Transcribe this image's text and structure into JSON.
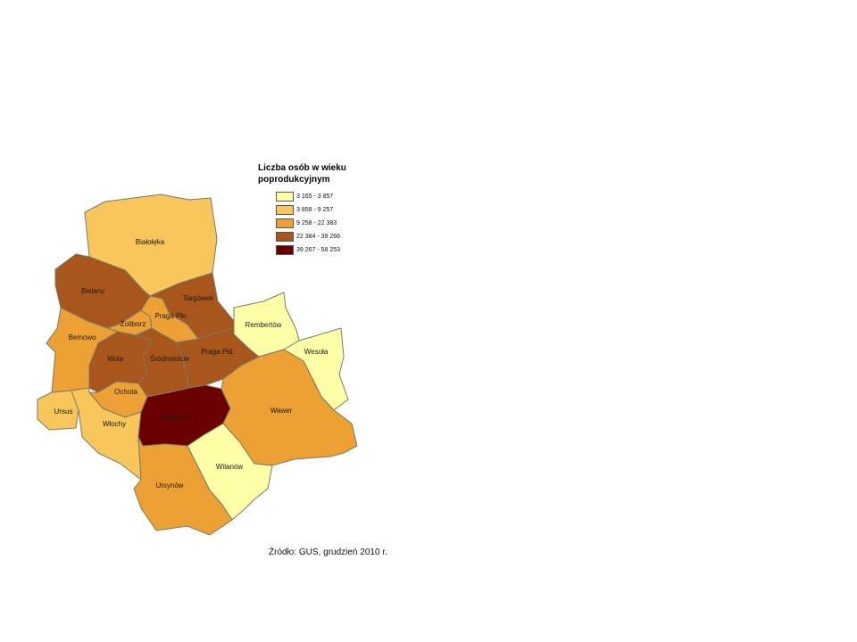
{
  "legend": {
    "title": "Liczba osób w wieku poprodukcyjnym",
    "classes": [
      {
        "range": "3 165 - 3 857",
        "color": "#ffffa8"
      },
      {
        "range": "3 858 - 9 257",
        "color": "#f8c65a"
      },
      {
        "range": "9 258 - 22 383",
        "color": "#eda135"
      },
      {
        "range": "22 384 - 39 266",
        "color": "#a8561c"
      },
      {
        "range": "39 267 - 58 253",
        "color": "#6b0000"
      }
    ]
  },
  "districts": [
    {
      "name": "Białołęka",
      "class": 1
    },
    {
      "name": "Bielany",
      "class": 3
    },
    {
      "name": "Targówek",
      "class": 3
    },
    {
      "name": "Żoliborz",
      "class": 2
    },
    {
      "name": "Praga Płn",
      "class": 2
    },
    {
      "name": "Rembertów",
      "class": 0
    },
    {
      "name": "Bemowo",
      "class": 2
    },
    {
      "name": "Wola",
      "class": 3
    },
    {
      "name": "Śródmieście",
      "class": 3
    },
    {
      "name": "Praga Płd.",
      "class": 3
    },
    {
      "name": "Wesoła",
      "class": 0
    },
    {
      "name": "Ochota",
      "class": 2
    },
    {
      "name": "Ursus",
      "class": 1
    },
    {
      "name": "Włochy",
      "class": 1
    },
    {
      "name": "Mokotów",
      "class": 4
    },
    {
      "name": "Wawer",
      "class": 2
    },
    {
      "name": "Wilanów",
      "class": 0
    },
    {
      "name": "Ursynów",
      "class": 2
    }
  ],
  "source": "Źródło: GUS, grudzień 2010 r."
}
